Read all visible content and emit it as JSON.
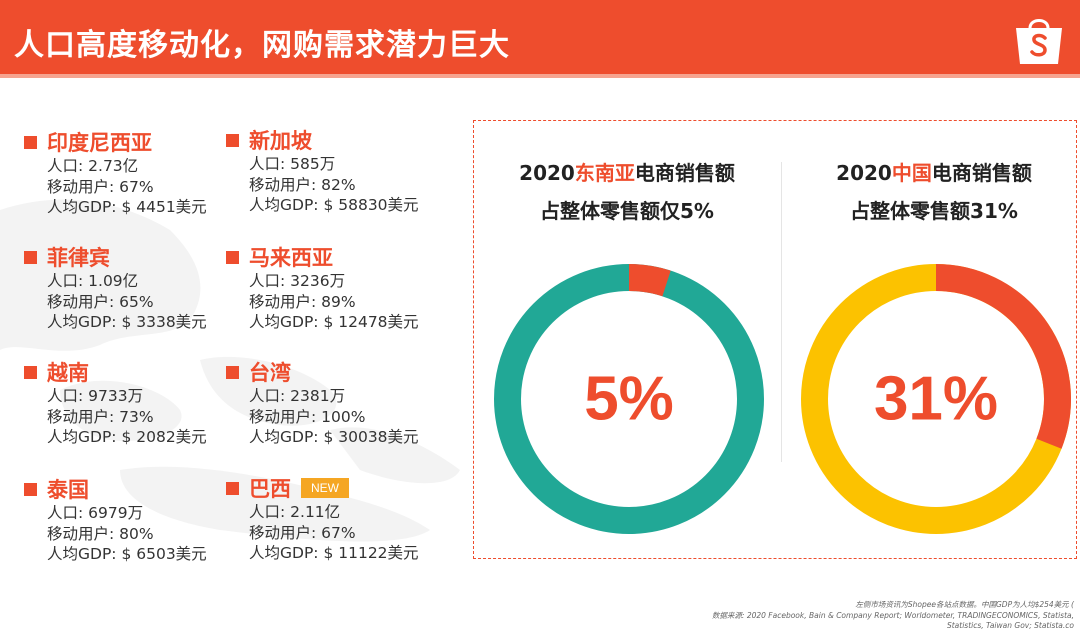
{
  "header": {
    "title": "人口高度移动化，网购需求潜力巨大"
  },
  "countries": {
    "indonesia": {
      "name": "印度尼西亚",
      "lines": [
        "人口: 2.73亿",
        "移动用户: 67%",
        "人均GDP: $ 4451美元"
      ]
    },
    "singapore": {
      "name": "新加坡",
      "lines": [
        "人口: 585万",
        "移动用户: 82%",
        "人均GDP: $ 58830美元"
      ]
    },
    "philippines": {
      "name": "菲律宾",
      "lines": [
        "人口: 1.09亿",
        "移动用户: 65%",
        "人均GDP: $ 3338美元"
      ]
    },
    "malaysia": {
      "name": "马来西亚",
      "lines": [
        "人口: 3236万",
        "移动用户: 89%",
        "人均GDP: $ 12478美元"
      ]
    },
    "vietnam": {
      "name": "越南",
      "lines": [
        "人口: 9733万",
        "移动用户: 73%",
        "人均GDP: $ 2082美元"
      ]
    },
    "taiwan": {
      "name": "台湾",
      "lines": [
        "人口: 2381万",
        "移动用户: 100%",
        "人均GDP: $ 30038美元"
      ]
    },
    "thailand": {
      "name": "泰国",
      "lines": [
        "人口: 6979万",
        "移动用户: 80%",
        "人均GDP: $ 6503美元"
      ]
    },
    "brazil": {
      "name": "巴西",
      "badge": "NEW",
      "lines": [
        "人口: 2.11亿",
        "移动用户: 67%",
        "人均GDP: $ 11122美元"
      ]
    }
  },
  "charts": {
    "sea": {
      "title_pre": "2020",
      "title_hl": "东南亚",
      "title_post": "电商销售额",
      "title_line2": "占整体零售额仅5%",
      "label": "5%",
      "share": 0.05
    },
    "china": {
      "title_pre": "2020",
      "title_hl": "中国",
      "title_post": "电商销售额",
      "title_line2": "占整体零售额31%",
      "label": "31%",
      "share": 0.31
    }
  },
  "footnote": {
    "line1": "左侧市场资讯为Shopee各站点数据。中国GDP为人均$254美元 (",
    "line2": "数据来源: 2020 Facebook, Bain & Company Report; Worldometer, TRADINGECONOMICS, Statista,",
    "line3": "Statistics, Taiwan Gov; Statista.co"
  },
  "colors": {
    "brand": "#ee4d2d",
    "teal": "#21a896",
    "yellow": "#fcc200"
  }
}
